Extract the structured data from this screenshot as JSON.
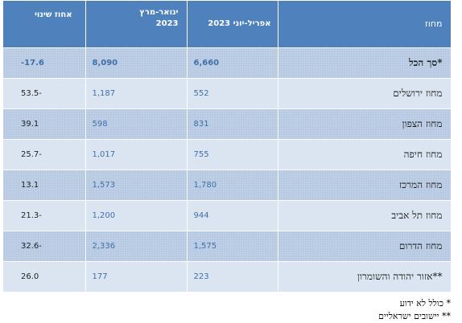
{
  "table": {
    "headers": {
      "change": "אחוז שינוי",
      "jan_mar_line1": "ינואר-מרץ",
      "jan_mar_line2": "2023",
      "apr_jun": "אפריל-יוני 2023",
      "district": "מחוז"
    },
    "rows": [
      {
        "district": "סך הכל*",
        "apr_jun": "6,660",
        "jan_mar": "8,090",
        "change": "-17.6"
      },
      {
        "district": "מחוז ירושלים",
        "apr_jun": "552",
        "jan_mar": "1,187",
        "change": "53.5-"
      },
      {
        "district": "מחוז הצפון",
        "apr_jun": "831",
        "jan_mar": "598",
        "change": "39.1"
      },
      {
        "district": "מחוז חיפה",
        "apr_jun": "755",
        "jan_mar": "1,017",
        "change": "25.7-"
      },
      {
        "district": "מחוז המרכז",
        "apr_jun": "1,780",
        "jan_mar": "1,573",
        "change": "13.1"
      },
      {
        "district": "מחוז תל אביב",
        "apr_jun": "944",
        "jan_mar": "1,200",
        "change": "21.3-"
      },
      {
        "district": "מחוז הדרום",
        "apr_jun": "1,575",
        "jan_mar": "2,336",
        "change": "32.6-"
      },
      {
        "district": "אזור יהודה והשומרון**",
        "apr_jun": "223",
        "jan_mar": "177",
        "change": "26.0"
      }
    ]
  },
  "footnotes": {
    "note1": "* כולל לא ידוע",
    "note2": "** יישובים ישראליים"
  }
}
